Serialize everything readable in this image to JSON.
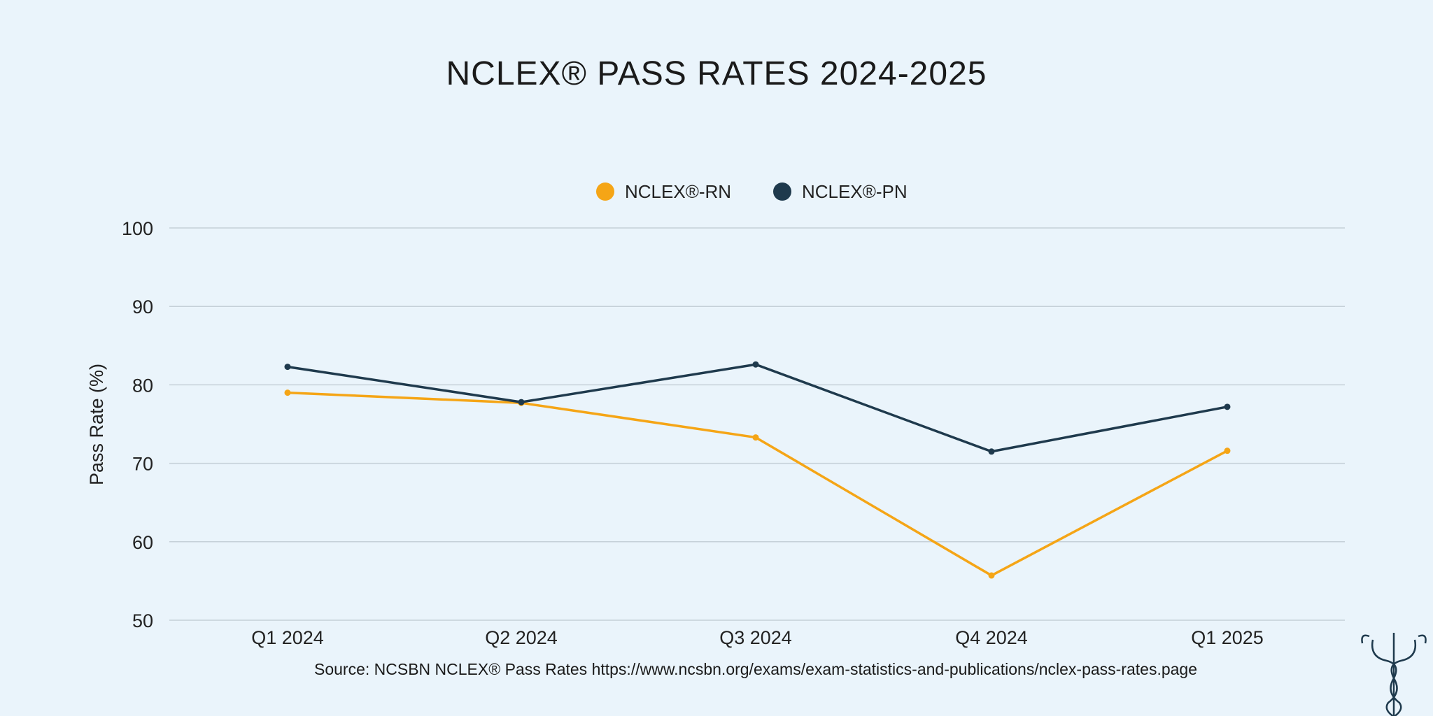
{
  "chart_data": {
    "type": "line",
    "title": "NCLEX® PASS RATES 2024-2025",
    "xlabel": "",
    "ylabel": "Pass Rate (%)",
    "categories": [
      "Q1 2024",
      "Q2 2024",
      "Q3 2024",
      "Q4 2024",
      "Q1 2025"
    ],
    "series": [
      {
        "name": "NCLEX®-RN",
        "color": "#f5a516",
        "values": [
          79.0,
          77.7,
          73.3,
          55.7,
          71.6
        ]
      },
      {
        "name": "NCLEX®-PN",
        "color": "#1f3a4d",
        "values": [
          82.3,
          77.8,
          82.6,
          71.5,
          77.2
        ]
      }
    ],
    "ylim": [
      50,
      100
    ],
    "yticks": [
      50,
      60,
      70,
      80,
      90,
      100
    ],
    "grid": true,
    "legend": "top-center",
    "source": "Source: NCSBN NCLEX® Pass Rates https://www.ncsbn.org/exams/exam-statistics-and-publications/nclex-pass-rates.page"
  },
  "logo": {
    "icon": "caduceus-stethoscope-icon"
  },
  "background": "#eaf4fb"
}
